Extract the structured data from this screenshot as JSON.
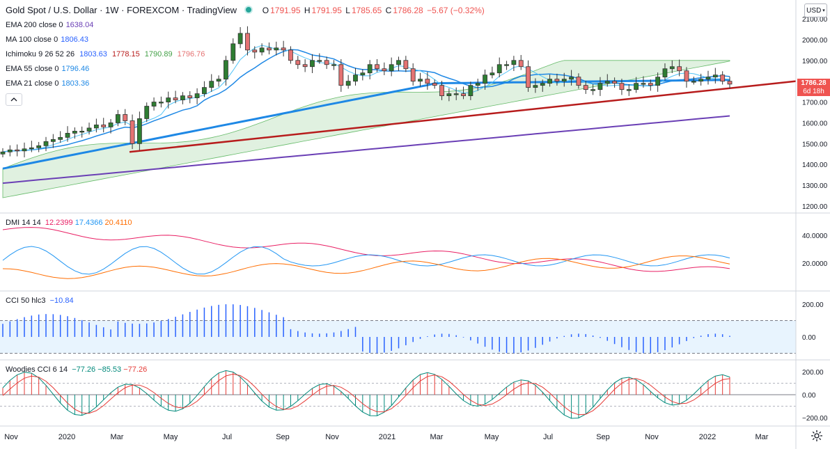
{
  "header": {
    "title": "Gold Spot / U.S. Dollar · 1W · FOREXCOM · TradingView",
    "ohlc": {
      "o_label": "O",
      "o": "1791.95",
      "h_label": "H",
      "h": "1791.95",
      "l_label": "L",
      "l": "1785.65",
      "c_label": "C",
      "c": "1786.28",
      "chg": "−5.67 (−0.32%)"
    }
  },
  "legend": [
    {
      "label": "EMA 200 close 0",
      "values": [
        "1638.04"
      ],
      "colors": [
        "#6a3fb5"
      ]
    },
    {
      "label": "MA 100 close 0",
      "values": [
        "1806.43"
      ],
      "colors": [
        "#2962ff"
      ]
    },
    {
      "label": "Ichimoku 9 26 52 26",
      "values": [
        "1803.63",
        "1778.15",
        "1790.89",
        "1796.76"
      ],
      "colors": [
        "#2962ff",
        "#b71c1c",
        "#43a047",
        "#e57373"
      ]
    },
    {
      "label": "EMA 55 close 0",
      "values": [
        "1796.46"
      ],
      "colors": [
        "#1e88e5"
      ]
    },
    {
      "label": "EMA 21 close 0",
      "values": [
        "1803.36"
      ],
      "colors": [
        "#1e88e5"
      ]
    }
  ],
  "price_axis": {
    "currency": "USD",
    "ticks": [
      "2100.00",
      "2000.00",
      "1900.00",
      "1800.00",
      "1700.00",
      "1600.00",
      "1500.00",
      "1400.00",
      "1300.00",
      "1200.00"
    ],
    "last_price": "1786.28",
    "countdown": "6d 18h"
  },
  "time_axis": [
    "Nov",
    "2020",
    "Mar",
    "May",
    "Jul",
    "Sep",
    "Nov",
    "2021",
    "Mar",
    "May",
    "Jul",
    "Sep",
    "Nov",
    "2022",
    "Mar"
  ],
  "dmi": {
    "label": "DMI 14 14",
    "values": [
      "12.2399",
      "17.4366",
      "20.4110"
    ],
    "colors": [
      "#e91e63",
      "#2196f3",
      "#ff6d00"
    ],
    "ticks": [
      "40.0000",
      "20.0000"
    ]
  },
  "cci": {
    "label": "CCI 50 hlc3",
    "values": [
      "−10.84"
    ],
    "colors": [
      "#2962ff"
    ],
    "ticks": [
      "200.00",
      "0.00"
    ]
  },
  "woodies": {
    "label": "Woodies CCI 6 14",
    "values": [
      "−77.26",
      "−85.53",
      "−77.26"
    ],
    "colors": [
      "#00897b",
      "#00897b",
      "#e53935"
    ],
    "ticks": [
      "200.00",
      "0.00",
      "−200.00"
    ]
  },
  "colors": {
    "up": "#26a69a",
    "down": "#ef5350",
    "up_body": "#388e3c",
    "down_body": "#e57373",
    "trend": "#b71c1c",
    "ema200": "#6a3fb5",
    "ma100": "#1e88e5"
  },
  "chart_data": {
    "type": "candlestick",
    "title": "Gold Spot / U.S. Dollar · 1W · FOREXCOM",
    "ylim": [
      1150,
      2150
    ],
    "weekly_closes_approx": [
      1460,
      1470,
      1465,
      1475,
      1480,
      1490,
      1510,
      1520,
      1530,
      1550,
      1560,
      1560,
      1575,
      1590,
      1580,
      1600,
      1640,
      1610,
      1500,
      1620,
      1680,
      1700,
      1700,
      1720,
      1710,
      1730,
      1720,
      1740,
      1770,
      1800,
      1810,
      1900,
      1980,
      2030,
      1950,
      1940,
      1960,
      1950,
      1960,
      1950,
      1900,
      1880,
      1870,
      1900,
      1900,
      1880,
      1880,
      1780,
      1800,
      1830,
      1840,
      1880,
      1860,
      1850,
      1880,
      1900,
      1860,
      1800,
      1810,
      1790,
      1780,
      1730,
      1740,
      1740,
      1730,
      1780,
      1790,
      1830,
      1840,
      1880,
      1880,
      1900,
      1870,
      1770,
      1780,
      1790,
      1810,
      1800,
      1810,
      1820,
      1780,
      1760,
      1760,
      1790,
      1800,
      1790,
      1760,
      1760,
      1790,
      1790,
      1780,
      1820,
      1860,
      1870,
      1850,
      1800,
      1800,
      1810,
      1820,
      1830,
      1800,
      1786
    ]
  }
}
